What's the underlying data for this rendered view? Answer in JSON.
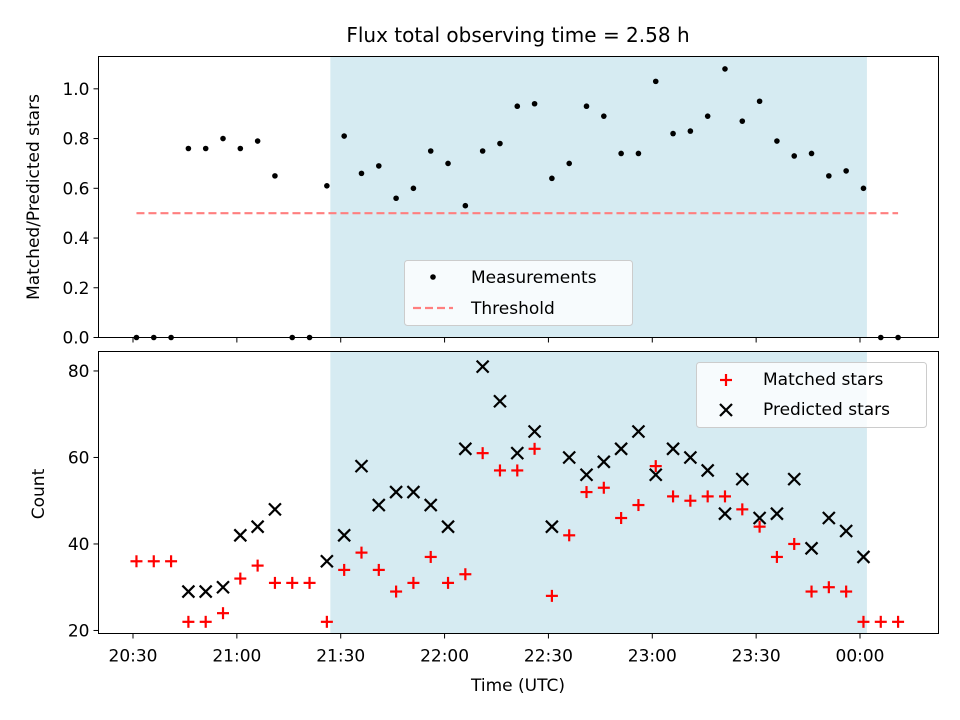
{
  "colors": {
    "shade": "#add8e6",
    "threshold": "#ff7f7f",
    "matched": "#ff0000",
    "predicted": "#000000",
    "measurement": "#000000"
  },
  "chart_data": [
    {
      "type": "scatter",
      "title": "Flux total observing time = 2.58 h",
      "xlabel": "",
      "ylabel": "Matched/Predicted stars",
      "ylim": [
        0,
        1.13
      ],
      "yticks": [
        "0.0",
        "0.2",
        "0.4",
        "0.6",
        "0.8",
        "1.0"
      ],
      "ytick_values": [
        0,
        0.2,
        0.4,
        0.6,
        0.8,
        1.0
      ],
      "shaded_interval": [
        "21:27",
        "00:02"
      ],
      "legend_position": "lower center",
      "series": [
        {
          "name": "Measurements",
          "marker": "dot",
          "x": [
            "20:31",
            "20:36",
            "20:41",
            "20:46",
            "20:51",
            "20:56",
            "21:01",
            "21:06",
            "21:11",
            "21:16",
            "21:21",
            "21:26",
            "21:31",
            "21:36",
            "21:41",
            "21:46",
            "21:51",
            "21:56",
            "22:01",
            "22:06",
            "22:11",
            "22:16",
            "22:21",
            "22:26",
            "22:31",
            "22:36",
            "22:41",
            "22:46",
            "22:51",
            "22:56",
            "23:01",
            "23:06",
            "23:11",
            "23:16",
            "23:21",
            "23:26",
            "23:31",
            "23:36",
            "23:41",
            "23:46",
            "23:51",
            "23:56",
            "00:01",
            "00:06",
            "00:11"
          ],
          "y": [
            0.0,
            0.0,
            0.0,
            0.76,
            0.76,
            0.8,
            0.76,
            0.79,
            0.65,
            0.0,
            0.0,
            0.61,
            0.81,
            0.66,
            0.69,
            0.56,
            0.6,
            0.75,
            0.7,
            0.53,
            0.75,
            0.78,
            0.93,
            0.94,
            0.64,
            0.7,
            0.93,
            0.89,
            0.74,
            0.74,
            1.03,
            0.82,
            0.83,
            0.89,
            1.08,
            0.87,
            0.95,
            0.79,
            0.73,
            0.74,
            0.65,
            0.67,
            0.6,
            0.0,
            0.0
          ]
        },
        {
          "name": "Threshold",
          "marker": "dashed-line",
          "x": [
            "20:31",
            "00:11"
          ],
          "y": [
            0.5,
            0.5
          ]
        }
      ]
    },
    {
      "type": "scatter",
      "title": "",
      "xlabel": "Time (UTC)",
      "ylabel": "Count",
      "ylim": [
        19.3,
        84.5
      ],
      "yticks": [
        "20",
        "40",
        "60",
        "80"
      ],
      "ytick_values": [
        20,
        40,
        60,
        80
      ],
      "xticks": [
        "20:30",
        "21:00",
        "21:30",
        "22:00",
        "22:30",
        "23:00",
        "23:30",
        "00:00"
      ],
      "shaded_interval": [
        "21:27",
        "00:02"
      ],
      "legend_position": "upper right",
      "series": [
        {
          "name": "Matched stars",
          "marker": "plus",
          "x": [
            "20:31",
            "20:36",
            "20:41",
            "20:46",
            "20:51",
            "20:56",
            "21:01",
            "21:06",
            "21:11",
            "21:16",
            "21:21",
            "21:26",
            "21:31",
            "21:36",
            "21:41",
            "21:46",
            "21:51",
            "21:56",
            "22:01",
            "22:06",
            "22:11",
            "22:16",
            "22:21",
            "22:26",
            "22:31",
            "22:36",
            "22:41",
            "22:46",
            "22:51",
            "22:56",
            "23:01",
            "23:06",
            "23:11",
            "23:16",
            "23:21",
            "23:26",
            "23:31",
            "23:36",
            "23:41",
            "23:46",
            "23:51",
            "23:56",
            "00:01",
            "00:06",
            "00:11"
          ],
          "y": [
            36,
            36,
            36,
            22,
            22,
            24,
            32,
            35,
            31,
            31,
            31,
            22,
            34,
            38,
            34,
            29,
            31,
            37,
            31,
            33,
            61,
            57,
            57,
            62,
            28,
            42,
            52,
            53,
            46,
            49,
            58,
            51,
            50,
            51,
            51,
            48,
            44,
            37,
            40,
            29,
            30,
            29,
            22,
            22,
            22
          ]
        },
        {
          "name": "Predicted stars",
          "marker": "x",
          "x": [
            "20:46",
            "20:51",
            "20:56",
            "21:01",
            "21:06",
            "21:11",
            "21:26",
            "21:31",
            "21:36",
            "21:41",
            "21:46",
            "21:51",
            "21:56",
            "22:01",
            "22:06",
            "22:11",
            "22:16",
            "22:21",
            "22:26",
            "22:31",
            "22:36",
            "22:41",
            "22:46",
            "22:51",
            "22:56",
            "23:01",
            "23:06",
            "23:11",
            "23:16",
            "23:21",
            "23:26",
            "23:31",
            "23:36",
            "23:41",
            "23:46",
            "23:51",
            "23:56",
            "00:01"
          ],
          "y": [
            29,
            29,
            30,
            42,
            44,
            48,
            36,
            42,
            58,
            49,
            52,
            52,
            49,
            44,
            62,
            81,
            73,
            61,
            66,
            44,
            60,
            56,
            59,
            62,
            66,
            56,
            62,
            60,
            57,
            47,
            55,
            46,
            47,
            55,
            39,
            46,
            43,
            37
          ]
        }
      ]
    }
  ]
}
